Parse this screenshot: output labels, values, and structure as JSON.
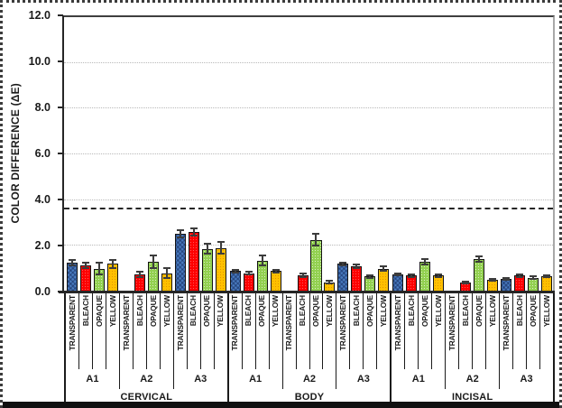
{
  "figure": {
    "background": "#ffffff",
    "outer_border_style": "dotted",
    "bottom_bar_color": "#101010"
  },
  "chart_data": {
    "type": "bar",
    "title": "",
    "xlabel": "",
    "ylabel": "COLOR DIFFERENCE (ΔE)",
    "ylim": [
      0,
      12
    ],
    "ytick_values": [
      0,
      2,
      4,
      6,
      8,
      10,
      12
    ],
    "ytick_labels": [
      "0.0",
      "2.0",
      "4.0",
      "6.0",
      "8.0",
      "10.0",
      "12.0"
    ],
    "gridline_values": [
      2,
      4,
      6,
      8,
      10
    ],
    "grid": "horizontal-dotted",
    "legend": "none",
    "threshold_line": {
      "y": 3.6,
      "style": "dashed",
      "color": "#262626"
    },
    "bar_series": [
      "TRANSPARENT",
      "BLEACH",
      "OPAQUE",
      "YELLOW"
    ],
    "series_colors": {
      "TRANSPARENT": "#4a7cc0",
      "BLEACH": "#fe0000",
      "OPAQUE": "#92d050",
      "YELLOW": "#ffc000"
    },
    "error_bars": true,
    "groups": [
      {
        "region": "CERVICAL",
        "subgroups": [
          {
            "label": "A1",
            "values": [
              1.25,
              1.15,
              1.0,
              1.2
            ],
            "errors": [
              0.15,
              0.15,
              0.3,
              0.2
            ]
          },
          {
            "label": "A2",
            "values": [
              0,
              0.75,
              1.3,
              0.8
            ],
            "errors": [
              0,
              0.15,
              0.3,
              0.25
            ]
          },
          {
            "label": "A3",
            "values": [
              2.5,
              2.6,
              1.85,
              1.9
            ],
            "errors": [
              0.2,
              0.2,
              0.25,
              0.3
            ]
          }
        ]
      },
      {
        "region": "BODY",
        "subgroups": [
          {
            "label": "A1",
            "values": [
              0.9,
              0.8,
              1.35,
              0.9
            ],
            "errors": [
              0.1,
              0.1,
              0.25,
              0.1
            ]
          },
          {
            "label": "A2",
            "values": [
              0,
              0.7,
              2.25,
              0.4
            ],
            "errors": [
              0,
              0.12,
              0.3,
              0.1
            ]
          },
          {
            "label": "A3",
            "values": [
              1.2,
              1.1,
              0.65,
              1.0
            ],
            "errors": [
              0.1,
              0.12,
              0.1,
              0.12
            ]
          }
        ]
      },
      {
        "region": "INCISAL",
        "subgroups": [
          {
            "label": "A1",
            "values": [
              0.75,
              0.7,
              1.3,
              0.7
            ],
            "errors": [
              0.08,
              0.1,
              0.15,
              0.1
            ]
          },
          {
            "label": "A2",
            "values": [
              0,
              0.4,
              1.4,
              0.5
            ],
            "errors": [
              0,
              0.08,
              0.15,
              0.08
            ]
          },
          {
            "label": "A3",
            "values": [
              0.55,
              0.7,
              0.6,
              0.65
            ],
            "errors": [
              0.07,
              0.1,
              0.1,
              0.08
            ]
          }
        ]
      }
    ]
  }
}
